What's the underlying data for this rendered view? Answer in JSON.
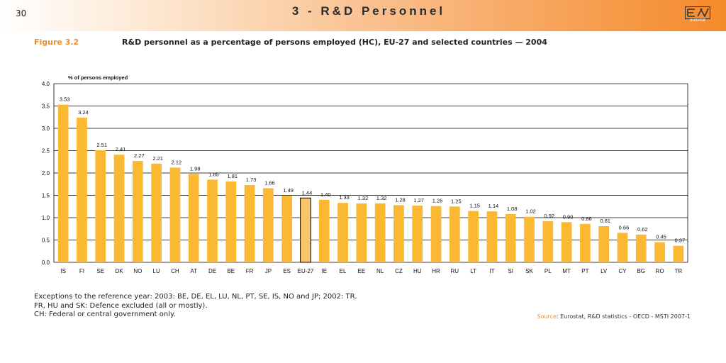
{
  "header": {
    "page_number": "30",
    "title": "3 - R&D Personnel",
    "logo_text": "eurostat"
  },
  "figure": {
    "label": "Figure 3.2",
    "title": "R&D personnel as a percentage of persons employed (HC), EU-27 and selected countries — 2004"
  },
  "colors": {
    "bar": "#fbb832",
    "highlight": "#f8c56a",
    "accent": "#f0902a"
  },
  "chart_data": {
    "type": "bar",
    "title": "R&D personnel as a percentage of persons employed (HC), EU-27 and selected countries — 2004",
    "ylabel": "% of persons employed",
    "xlabel": "",
    "ylim": [
      0,
      4.0
    ],
    "yticks": [
      "0.0",
      "0.5",
      "1.0",
      "1.5",
      "2.0",
      "2.5",
      "3.0",
      "3.5",
      "4.0"
    ],
    "grid": true,
    "highlight_category": "EU-27",
    "categories": [
      "IS",
      "FI",
      "SE",
      "DK",
      "NO",
      "LU",
      "CH",
      "AT",
      "DE",
      "BE",
      "FR",
      "JP",
      "ES",
      "EU-27",
      "IE",
      "EL",
      "EE",
      "NL",
      "CZ",
      "HU",
      "HR",
      "RU",
      "LT",
      "IT",
      "SI",
      "SK",
      "PL",
      "MT",
      "PT",
      "LV",
      "CY",
      "BG",
      "RO",
      "TR"
    ],
    "values": [
      3.53,
      3.24,
      2.51,
      2.41,
      2.27,
      2.21,
      2.12,
      1.98,
      1.85,
      1.81,
      1.73,
      1.66,
      1.49,
      1.44,
      1.4,
      1.33,
      1.32,
      1.32,
      1.28,
      1.27,
      1.26,
      1.25,
      1.15,
      1.14,
      1.08,
      1.02,
      0.92,
      0.9,
      0.86,
      0.81,
      0.66,
      0.62,
      0.45,
      0.37
    ],
    "value_labels": [
      "3.53",
      "3.24",
      "2.51",
      "2.41",
      "2.27",
      "2.21",
      "2.12",
      "1.98",
      "1.85",
      "1.81",
      "1.73",
      "1.66",
      "1.49",
      "1.44",
      "1.40",
      "1.33",
      "1.32",
      "1.32",
      "1.28",
      "1.27",
      "1.26",
      "1.25",
      "1.15",
      "1.14",
      "1.08",
      "1.02",
      "0.92",
      "0.90",
      "0.86",
      "0.81",
      "0.66",
      "0.62",
      "0.45",
      "0.37"
    ]
  },
  "notes": {
    "line1": "Exceptions to the reference year: 2003: BE, DE, EL, LU, NL, PT, SE, IS, NO and JP; 2002: TR.",
    "line2": "FR, HU and SK: Defence excluded (all or mostly).",
    "line3": "CH: Federal or central government only."
  },
  "source": {
    "label": "Source",
    "text": ": Eurostat, R&D statistics - OECD - MSTI 2007-1"
  }
}
